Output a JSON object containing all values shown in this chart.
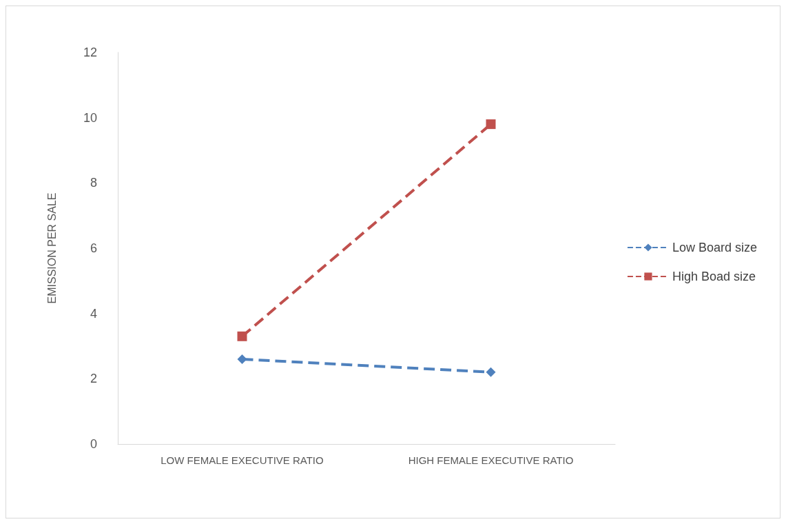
{
  "chart_data": {
    "type": "line",
    "ylabel": "EMISSION PER SALE",
    "categories": [
      "LOW FEMALE EXECUTIVE RATIO",
      "HIGH FEMALE EXECUTIVE RATIO"
    ],
    "series": [
      {
        "name": "Low Board size",
        "color": "#4f81bd",
        "marker": "diamond",
        "values": [
          2.6,
          2.2
        ]
      },
      {
        "name": "High Boad size",
        "color": "#c0504d",
        "marker": "square",
        "values": [
          3.3,
          9.8
        ]
      }
    ],
    "ylim": [
      0,
      12
    ],
    "yticks": [
      0,
      2,
      4,
      6,
      8,
      10,
      12
    ],
    "grid": false,
    "legend": "right",
    "line_style": "dashed"
  }
}
